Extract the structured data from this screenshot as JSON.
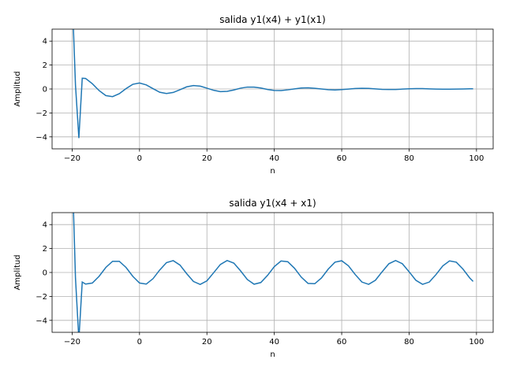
{
  "chart_data": [
    {
      "type": "line",
      "title": "salida y1(x4) + y1(x1)",
      "xlabel": "n",
      "ylabel": "Amplitud",
      "grid": true,
      "x": [
        -20,
        -19,
        -18,
        -17,
        -16,
        -14,
        -12,
        -10,
        -8,
        -6,
        -4,
        -2,
        0,
        2,
        4,
        6,
        8,
        10,
        12,
        14,
        16,
        18,
        20,
        22,
        24,
        26,
        28,
        30,
        32,
        34,
        36,
        38,
        40,
        42,
        44,
        46,
        48,
        50,
        52,
        54,
        56,
        58,
        60,
        62,
        64,
        66,
        68,
        70,
        72,
        74,
        76,
        78,
        80,
        82,
        84,
        86,
        88,
        90,
        92,
        94,
        96,
        98,
        99
      ],
      "series": [
        {
          "color": "#1f77b4",
          "values": [
            8,
            0.3,
            -4.1,
            0.9,
            0.88,
            0.44,
            -0.13,
            -0.55,
            -0.64,
            -0.39,
            0.03,
            0.39,
            0.5,
            0.34,
            0.03,
            -0.27,
            -0.38,
            -0.29,
            -0.06,
            0.18,
            0.29,
            0.24,
            0.07,
            -0.11,
            -0.22,
            -0.2,
            -0.08,
            0.07,
            0.16,
            0.16,
            0.08,
            -0.04,
            -0.12,
            -0.13,
            -0.07,
            0.01,
            0.08,
            0.1,
            0.06,
            0,
            -0.06,
            -0.08,
            -0.05,
            -0.01,
            0.04,
            0.06,
            0.05,
            0.01,
            -0.03,
            -0.04,
            -0.04,
            -0.01,
            0.02,
            0.03,
            0.03,
            0.01,
            -0.01,
            -0.02,
            -0.02,
            -0.01,
            0,
            0.02,
            0.02
          ]
        }
      ],
      "xlim": [
        -25.95,
        104.95
      ],
      "xticks": [
        {
          "value": -20,
          "label": "−20"
        },
        0,
        20,
        40,
        60,
        80,
        100
      ],
      "ylim": [
        -5,
        5
      ],
      "yticks": [
        {
          "value": -4,
          "label": "−4"
        },
        {
          "value": -2,
          "label": "−2"
        },
        0,
        2,
        4
      ]
    },
    {
      "type": "line",
      "title": "salida y1(x4 + x1)",
      "xlabel": "n",
      "ylabel": "Amplitud",
      "grid": true,
      "x": [
        -20,
        -19,
        -18,
        -17,
        -16,
        -14,
        -12,
        -10,
        -8,
        -6,
        -4,
        -2,
        0,
        2,
        4,
        6,
        8,
        10,
        12,
        14,
        16,
        18,
        20,
        22,
        24,
        26,
        28,
        30,
        32,
        34,
        36,
        38,
        40,
        42,
        44,
        46,
        48,
        50,
        52,
        54,
        56,
        58,
        60,
        62,
        64,
        66,
        68,
        70,
        72,
        74,
        76,
        78,
        80,
        82,
        84,
        86,
        88,
        90,
        92,
        94,
        96,
        98,
        99
      ],
      "series": [
        {
          "color": "#1f77b4",
          "values": [
            9,
            -0.5,
            -5.6,
            -0.8,
            -0.97,
            -0.88,
            -0.32,
            0.42,
            0.93,
            0.93,
            0.42,
            -0.32,
            -0.88,
            -0.97,
            -0.52,
            0.21,
            0.82,
            0.99,
            0.62,
            -0.1,
            -0.75,
            -1,
            -0.7,
            -0.02,
            0.67,
            1,
            0.78,
            0.13,
            -0.59,
            -0.98,
            -0.84,
            -0.24,
            0.49,
            0.96,
            0.9,
            0.35,
            -0.39,
            -0.91,
            -0.94,
            -0.46,
            0.28,
            0.86,
            0.98,
            0.56,
            -0.17,
            -0.8,
            -0.99,
            -0.65,
            0.06,
            0.73,
            1,
            0.73,
            0.06,
            -0.65,
            -0.99,
            -0.8,
            -0.17,
            0.55,
            0.97,
            0.86,
            0.28,
            -0.46,
            -0.75
          ]
        }
      ],
      "xlim": [
        -25.95,
        104.95
      ],
      "xticks": [
        {
          "value": -20,
          "label": "−20"
        },
        0,
        20,
        40,
        60,
        80,
        100
      ],
      "ylim": [
        -5,
        5
      ],
      "yticks": [
        {
          "value": -4,
          "label": "−4"
        },
        {
          "value": -2,
          "label": "−2"
        },
        0,
        2,
        4
      ]
    }
  ]
}
